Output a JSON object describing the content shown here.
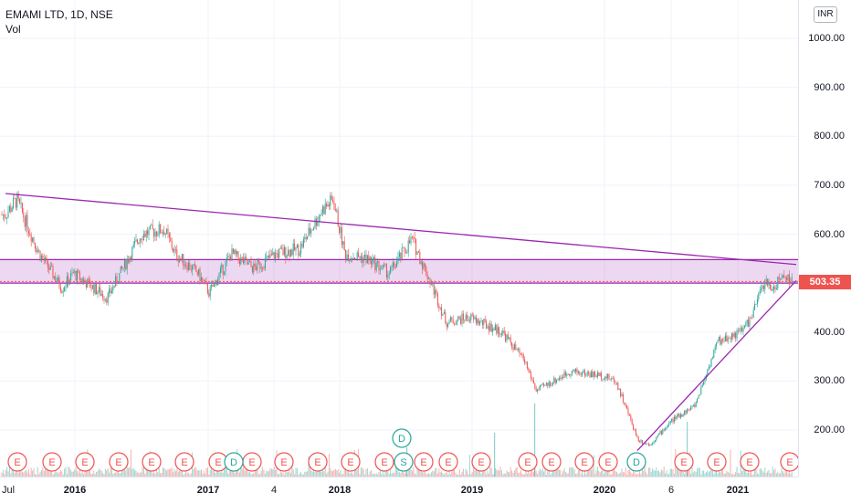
{
  "header": {
    "symbol": "EMAMI LTD, 1D, NSE",
    "volume_label": "Vol"
  },
  "price_axis": {
    "currency": "INR",
    "labels": [
      "1000.00",
      "900.00",
      "800.00",
      "700.00",
      "600.00",
      "400.00",
      "300.00",
      "200.00"
    ],
    "last_price": "503.35"
  },
  "time_axis": {
    "labels": [
      "Jul",
      "2016",
      "2017",
      "4",
      "2018",
      "2019",
      "2020",
      "6",
      "2021"
    ]
  },
  "colors": {
    "up": "#26a69a",
    "down": "#ef5350",
    "zone": "#9c27b0",
    "trend": "#9c27b0"
  },
  "events": {
    "earnings_marker": "E",
    "dividend_marker": "D",
    "split_marker": "S"
  },
  "chart_data": {
    "type": "candlestick",
    "symbol": "EMAMI LTD",
    "interval": "1D",
    "exchange": "NSE",
    "currency": "INR",
    "ylim": [
      110,
      1050
    ],
    "last_price": 503.35,
    "approx_close_path": [
      [
        "2015-07",
        640
      ],
      [
        "2015-08",
        670
      ],
      [
        "2015-10",
        560
      ],
      [
        "2015-12",
        490
      ],
      [
        "2016-01",
        520
      ],
      [
        "2016-04",
        470
      ],
      [
        "2016-07",
        600
      ],
      [
        "2016-09",
        610
      ],
      [
        "2016-10",
        560
      ],
      [
        "2016-12",
        520
      ],
      [
        "2017-01",
        480
      ],
      [
        "2017-03",
        560
      ],
      [
        "2017-05",
        530
      ],
      [
        "2017-07",
        560
      ],
      [
        "2017-09",
        570
      ],
      [
        "2017-11",
        650
      ],
      [
        "2017-12",
        670
      ],
      [
        "2018-01",
        560
      ],
      [
        "2018-03",
        550
      ],
      [
        "2018-05",
        520
      ],
      [
        "2018-07",
        590
      ],
      [
        "2018-09",
        480
      ],
      [
        "2018-10",
        420
      ],
      [
        "2018-12",
        430
      ],
      [
        "2019-03",
        400
      ],
      [
        "2019-05",
        340
      ],
      [
        "2019-06",
        280
      ],
      [
        "2019-09",
        320
      ],
      [
        "2019-12",
        310
      ],
      [
        "2020-01",
        300
      ],
      [
        "2020-03",
        180
      ],
      [
        "2020-04",
        170
      ],
      [
        "2020-06",
        220
      ],
      [
        "2020-08",
        250
      ],
      [
        "2020-10",
        380
      ],
      [
        "2020-12",
        400
      ],
      [
        "2021-01",
        430
      ],
      [
        "2021-02",
        500
      ],
      [
        "2021-03",
        490
      ],
      [
        "2021-04",
        520
      ],
      [
        "2021-05",
        503.35
      ]
    ],
    "drawings": {
      "horizontal_zone": {
        "low": 500,
        "high": 548
      },
      "falling_trendline": [
        [
          "2015-07",
          683
        ],
        [
          "2021-05",
          538
        ]
      ],
      "rising_trendline": [
        [
          "2020-04",
          158
        ],
        [
          "2021-05",
          505
        ]
      ]
    }
  }
}
